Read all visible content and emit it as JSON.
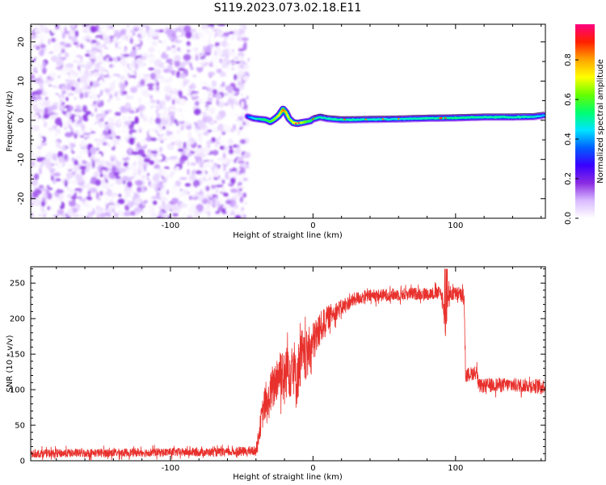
{
  "title": "S119.2023.073.02.18.E11",
  "chart_data": [
    {
      "type": "heatmap",
      "xlabel": "Height of straight line (km)",
      "ylabel": "Frequency (Hz)",
      "xlim": [
        -198,
        163
      ],
      "ylim": [
        -25,
        24.5
      ],
      "x_ticks": [
        -100,
        0,
        100
      ],
      "y_ticks": [
        -20,
        -10,
        0,
        10,
        20
      ],
      "colorbar": {
        "label": "Normalized spectral amplitude",
        "range": [
          0,
          0.98
        ],
        "ticks": [
          0.0,
          0.2,
          0.4,
          0.6,
          0.8
        ],
        "colors": [
          "#ffffff",
          "#d9bbff",
          "#8a2be2",
          "#3a00ff",
          "#0060ff",
          "#00e5ff",
          "#00ff70",
          "#66ff00",
          "#ffff00",
          "#ffa500",
          "#ff2000",
          "#ff0080"
        ]
      },
      "noise_region_x": [
        -198,
        -46
      ],
      "signal_line": {
        "x": [
          -46,
          -42,
          -38,
          -33,
          -30,
          -27,
          -24,
          -21,
          -19,
          -17,
          -14,
          -11,
          -8,
          -5,
          -2,
          0,
          5,
          10,
          20,
          40,
          60,
          80,
          100,
          120,
          140,
          155,
          163
        ],
        "y": [
          1.0,
          0.5,
          0.3,
          0.1,
          -0.4,
          0.3,
          1.2,
          2.8,
          2.0,
          0.5,
          -0.6,
          -0.8,
          -0.6,
          -0.4,
          -0.2,
          0.3,
          0.8,
          0.4,
          0.1,
          0.2,
          0.3,
          0.5,
          0.6,
          0.8,
          0.8,
          0.9,
          1.3
        ],
        "amplitude": [
          0.35,
          0.45,
          0.5,
          0.55,
          0.6,
          0.65,
          0.7,
          0.85,
          0.75,
          0.65,
          0.7,
          0.72,
          0.68,
          0.6,
          0.55,
          0.52,
          0.5,
          0.48,
          0.5,
          0.48,
          0.47,
          0.5,
          0.52,
          0.5,
          0.5,
          0.48,
          0.4
        ]
      }
    },
    {
      "type": "line",
      "xlabel": "Height of straight line (km)",
      "ylabel": "SNR (10 * v/v)",
      "xlim": [
        -198,
        163
      ],
      "ylim": [
        0,
        273
      ],
      "x_ticks": [
        -100,
        0,
        100
      ],
      "y_ticks": [
        0,
        50,
        100,
        150,
        200,
        250
      ],
      "color": "#e8302c",
      "series": [
        {
          "x": [
            -198,
            -150,
            -100,
            -60,
            -40,
            -36,
            -34,
            -32,
            -30,
            -28,
            -25,
            -22,
            -20,
            -18,
            -16,
            -14,
            -12,
            -10,
            -8,
            -6,
            -4,
            -2,
            0,
            2,
            5,
            8,
            10,
            15,
            20,
            25,
            30,
            40,
            50,
            60,
            70,
            80,
            90,
            93,
            95,
            100,
            106,
            107,
            110,
            115,
            116,
            130,
            150,
            163
          ],
          "y": [
            10,
            11,
            12,
            12,
            14,
            60,
            80,
            75,
            95,
            100,
            120,
            130,
            110,
            140,
            125,
            145,
            110,
            130,
            150,
            140,
            150,
            160,
            165,
            175,
            185,
            195,
            200,
            210,
            215,
            222,
            228,
            232,
            233,
            234,
            235,
            235,
            236,
            190,
            235,
            235,
            232,
            120,
            122,
            125,
            105,
            107,
            106,
            105
          ],
          "spread": [
            6,
            6,
            6,
            6,
            7,
            20,
            25,
            25,
            30,
            30,
            35,
            40,
            40,
            45,
            40,
            45,
            40,
            40,
            40,
            35,
            35,
            30,
            30,
            30,
            25,
            20,
            18,
            14,
            12,
            10,
            10,
            9,
            9,
            9,
            9,
            9,
            10,
            20,
            12,
            10,
            10,
            10,
            10,
            10,
            10,
            10,
            10,
            10
          ]
        }
      ]
    }
  ]
}
